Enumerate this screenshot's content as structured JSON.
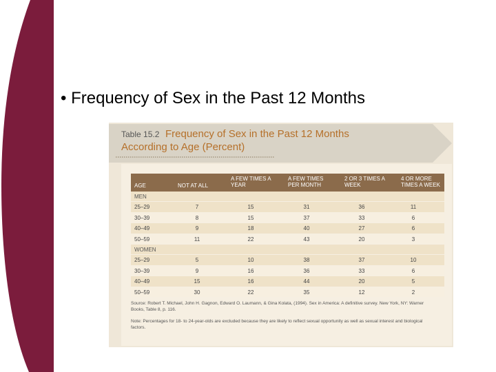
{
  "bullet": "Frequency of Sex in the Past 12 Months",
  "table": {
    "number": "Table 15.2",
    "title_line1": "Frequency of Sex in the Past 12 Months",
    "title_line2": "According to Age (Percent)",
    "header": [
      "AGE",
      "NOT AT ALL",
      "A FEW TIMES A YEAR",
      "A FEW TIMES PER MONTH",
      "2 OR 3 TIMES A WEEK",
      "4 OR MORE TIMES A WEEK"
    ],
    "sections": [
      {
        "label": "MEN",
        "rows": [
          [
            "25–29",
            7,
            15,
            31,
            36,
            11
          ],
          [
            "30–39",
            8,
            15,
            37,
            33,
            6
          ],
          [
            "40–49",
            9,
            18,
            40,
            27,
            6
          ],
          [
            "50–59",
            11,
            22,
            43,
            20,
            3
          ]
        ]
      },
      {
        "label": "WOMEN",
        "rows": [
          [
            "25–29",
            5,
            10,
            38,
            37,
            10
          ],
          [
            "30–39",
            9,
            16,
            36,
            33,
            6
          ],
          [
            "40–49",
            15,
            16,
            44,
            20,
            5
          ],
          [
            "50–59",
            30,
            22,
            35,
            12,
            2
          ]
        ]
      }
    ],
    "source": "Source: Robert T. Michael, John H. Gagnon, Edward O. Laumann, & Gina Kolata, (1994). Sex in America: A definitive survey. New York, NY: Warner Books, Table 8, p. 116.",
    "note": "Note: Percentages for 18- to 24-year-olds are excluded because they are likely to reflect sexual opportunity as well as sexual interest and biological factors."
  }
}
